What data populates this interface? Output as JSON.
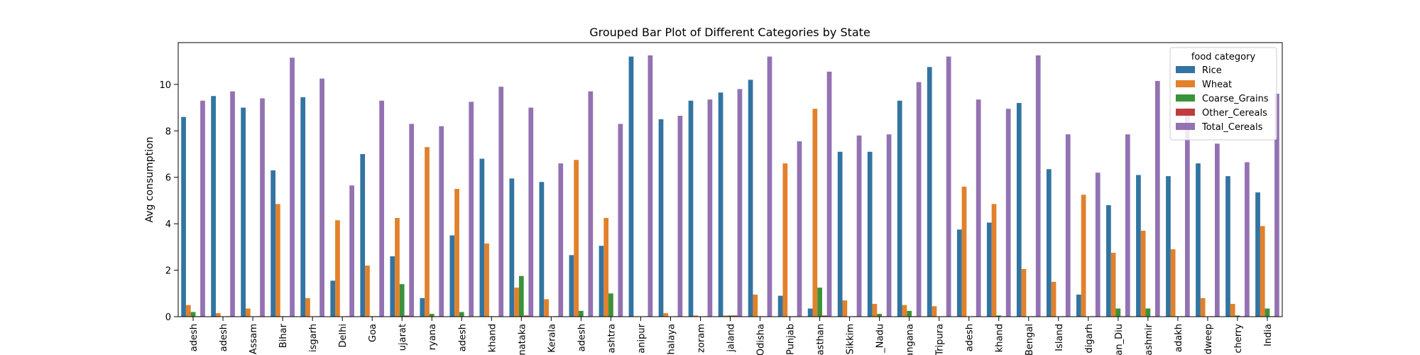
{
  "chart_data": {
    "type": "bar",
    "title": "Grouped Bar Plot of Different Categories by State",
    "xlabel": "",
    "ylabel": "Avg consumption",
    "ylim": [
      0,
      11.8
    ],
    "yticks": [
      0,
      2,
      4,
      6,
      8,
      10
    ],
    "grid": false,
    "legend": {
      "title": "food category",
      "placement": "top-right"
    },
    "categories": [
      "adesh",
      "adesh",
      "Assam",
      "Bihar",
      "isgarh",
      "Delhi",
      "Goa",
      "ujarat",
      "ryana",
      "adesh",
      "khand",
      "nataka",
      "Kerala",
      "adesh",
      "ashtra",
      "anipur",
      "halaya",
      "zoram",
      "jaland",
      "Odisha",
      "Punjab",
      "asthan",
      "Sikkim",
      "_Nadu",
      "angana",
      "Tripura",
      "adesh",
      "khand",
      "Bengal",
      "Island",
      "digarh",
      "an_Diu",
      "ashmir",
      "adakh",
      "dweep",
      "cherry",
      "India"
    ],
    "series": [
      {
        "name": "Rice",
        "color": "#3274a1",
        "values": [
          8.6,
          9.5,
          9.0,
          6.3,
          9.45,
          1.55,
          7.0,
          2.6,
          0.8,
          3.5,
          6.8,
          5.95,
          5.8,
          2.65,
          3.05,
          11.2,
          8.5,
          9.3,
          9.65,
          10.2,
          0.9,
          0.35,
          7.1,
          7.1,
          9.3,
          10.75,
          3.75,
          4.05,
          9.2,
          6.35,
          0.95,
          4.8,
          6.1,
          6.05,
          6.6,
          6.05,
          5.35
        ]
      },
      {
        "name": "Wheat",
        "color": "#e1812c",
        "values": [
          0.5,
          0.15,
          0.35,
          4.85,
          0.8,
          4.15,
          2.2,
          4.25,
          7.3,
          5.5,
          3.15,
          1.25,
          0.75,
          6.75,
          4.25,
          0.02,
          0.15,
          0.05,
          0.05,
          0.95,
          6.6,
          8.95,
          0.7,
          0.55,
          0.5,
          0.45,
          5.6,
          4.85,
          2.05,
          1.5,
          5.25,
          2.75,
          3.7,
          2.9,
          0.8,
          0.55,
          3.9
        ]
      },
      {
        "name": "Coarse_Grains",
        "color": "#3a923a",
        "values": [
          0.2,
          0.0,
          0.0,
          0.02,
          0.0,
          0.0,
          0.02,
          1.4,
          0.12,
          0.2,
          0.02,
          1.75,
          0.0,
          0.25,
          1.0,
          0.0,
          0.0,
          0.0,
          0.05,
          0.02,
          0.02,
          1.25,
          0.0,
          0.12,
          0.25,
          0.0,
          0.0,
          0.05,
          0.0,
          0.0,
          0.0,
          0.35,
          0.35,
          0.02,
          0.0,
          0.05,
          0.35
        ]
      },
      {
        "name": "Other_Cereals",
        "color": "#c03d3e",
        "values": [
          0.02,
          0.02,
          0.02,
          0.02,
          0.02,
          0.02,
          0.02,
          0.05,
          0.02,
          0.02,
          0.02,
          0.05,
          0.02,
          0.02,
          0.02,
          0.02,
          0.02,
          0.02,
          0.05,
          0.02,
          0.02,
          0.05,
          0.02,
          0.02,
          0.02,
          0.02,
          0.02,
          0.02,
          0.02,
          0.02,
          0.02,
          0.02,
          0.02,
          0.02,
          0.02,
          0.02,
          0.02
        ]
      },
      {
        "name": "Total_Cereals",
        "color": "#9372b2",
        "values": [
          9.3,
          9.7,
          9.4,
          11.15,
          10.25,
          5.65,
          9.3,
          8.3,
          8.2,
          9.25,
          9.9,
          9.0,
          6.6,
          9.7,
          8.3,
          11.25,
          8.65,
          9.35,
          9.8,
          11.2,
          7.55,
          10.55,
          7.8,
          7.85,
          10.1,
          11.2,
          9.35,
          8.95,
          11.25,
          7.85,
          6.2,
          7.85,
          10.15,
          9.0,
          7.45,
          6.65,
          9.6
        ]
      }
    ]
  }
}
